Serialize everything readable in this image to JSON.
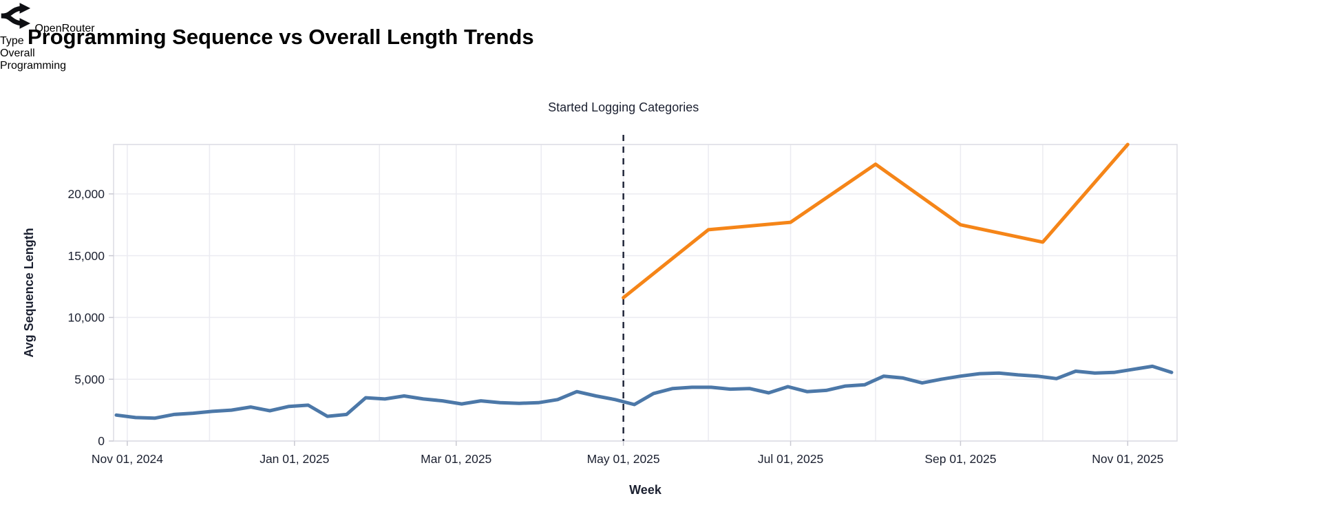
{
  "header": {
    "title": "Programming Sequence vs Overall Length Trends",
    "brand": {
      "name": "OpenRouter"
    }
  },
  "chart_data": {
    "type": "line",
    "title": "Programming Sequence vs Overall Length Trends",
    "xlabel": "Week",
    "ylabel": "Avg Sequence Length",
    "x_domain": [
      "2024-10-27",
      "2025-11-19"
    ],
    "ylim": [
      0,
      24000
    ],
    "y_ticks": [
      0,
      5000,
      10000,
      15000,
      20000
    ],
    "x_ticks": [
      {
        "date": "2024-11-01",
        "label": "Nov 01, 2024"
      },
      {
        "date": "2025-01-01",
        "label": "Jan 01, 2025"
      },
      {
        "date": "2025-03-01",
        "label": "Mar 01, 2025"
      },
      {
        "date": "2025-05-01",
        "label": "May 01, 2025"
      },
      {
        "date": "2025-07-01",
        "label": "Jul 01, 2025"
      },
      {
        "date": "2025-09-01",
        "label": "Sep 01, 2025"
      },
      {
        "date": "2025-11-01",
        "label": "Nov 01, 2025"
      }
    ],
    "grid": true,
    "annotation": {
      "date": "2025-05-01",
      "label": "Started Logging Categories"
    },
    "legend": {
      "title": "Type",
      "position": "right",
      "entries": [
        {
          "label": "Overall",
          "color": "#4c78a8"
        },
        {
          "label": "Programming",
          "color": "#f58518"
        }
      ]
    },
    "series": [
      {
        "name": "Overall",
        "color": "#4c78a8",
        "points": [
          [
            "2024-10-28",
            2100
          ],
          [
            "2024-11-04",
            1900
          ],
          [
            "2024-11-11",
            1850
          ],
          [
            "2024-11-18",
            2150
          ],
          [
            "2024-11-25",
            2250
          ],
          [
            "2024-12-02",
            2400
          ],
          [
            "2024-12-09",
            2500
          ],
          [
            "2024-12-16",
            2750
          ],
          [
            "2024-12-23",
            2450
          ],
          [
            "2024-12-30",
            2800
          ],
          [
            "2025-01-06",
            2900
          ],
          [
            "2025-01-13",
            2000
          ],
          [
            "2025-01-20",
            2150
          ],
          [
            "2025-01-27",
            3500
          ],
          [
            "2025-02-03",
            3400
          ],
          [
            "2025-02-10",
            3650
          ],
          [
            "2025-02-17",
            3400
          ],
          [
            "2025-02-24",
            3250
          ],
          [
            "2025-03-03",
            3000
          ],
          [
            "2025-03-10",
            3250
          ],
          [
            "2025-03-17",
            3100
          ],
          [
            "2025-03-24",
            3050
          ],
          [
            "2025-03-31",
            3100
          ],
          [
            "2025-04-07",
            3350
          ],
          [
            "2025-04-14",
            4000
          ],
          [
            "2025-04-21",
            3650
          ],
          [
            "2025-04-28",
            3350
          ],
          [
            "2025-05-05",
            2950
          ],
          [
            "2025-05-12",
            3850
          ],
          [
            "2025-05-19",
            4250
          ],
          [
            "2025-05-26",
            4350
          ],
          [
            "2025-06-02",
            4350
          ],
          [
            "2025-06-09",
            4200
          ],
          [
            "2025-06-16",
            4250
          ],
          [
            "2025-06-23",
            3900
          ],
          [
            "2025-06-30",
            4400
          ],
          [
            "2025-07-07",
            4000
          ],
          [
            "2025-07-14",
            4100
          ],
          [
            "2025-07-21",
            4450
          ],
          [
            "2025-07-28",
            4550
          ],
          [
            "2025-08-04",
            5250
          ],
          [
            "2025-08-11",
            5100
          ],
          [
            "2025-08-18",
            4700
          ],
          [
            "2025-08-25",
            5000
          ],
          [
            "2025-09-01",
            5250
          ],
          [
            "2025-09-08",
            5450
          ],
          [
            "2025-09-15",
            5500
          ],
          [
            "2025-09-22",
            5350
          ],
          [
            "2025-09-29",
            5250
          ],
          [
            "2025-10-06",
            5050
          ],
          [
            "2025-10-13",
            5650
          ],
          [
            "2025-10-20",
            5500
          ],
          [
            "2025-10-27",
            5550
          ],
          [
            "2025-11-03",
            5800
          ],
          [
            "2025-11-10",
            6050
          ],
          [
            "2025-11-17",
            5550
          ]
        ]
      },
      {
        "name": "Programming",
        "color": "#f58518",
        "points": [
          [
            "2025-05-01",
            11600
          ],
          [
            "2025-06-01",
            17100
          ],
          [
            "2025-07-01",
            17700
          ],
          [
            "2025-08-01",
            22400
          ],
          [
            "2025-09-01",
            17500
          ],
          [
            "2025-10-01",
            16100
          ],
          [
            "2025-11-01",
            24000
          ]
        ]
      }
    ]
  }
}
